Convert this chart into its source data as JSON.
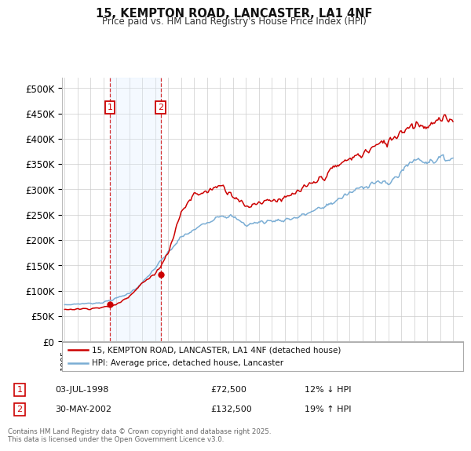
{
  "title": "15, KEMPTON ROAD, LANCASTER, LA1 4NF",
  "subtitle": "Price paid vs. HM Land Registry's House Price Index (HPI)",
  "legend_line1": "15, KEMPTON ROAD, LANCASTER, LA1 4NF (detached house)",
  "legend_line2": "HPI: Average price, detached house, Lancaster",
  "footnote": "Contains HM Land Registry data © Crown copyright and database right 2025.\nThis data is licensed under the Open Government Licence v3.0.",
  "sale1_label": "1",
  "sale1_date": "03-JUL-1998",
  "sale1_price": "£72,500",
  "sale1_hpi": "12% ↓ HPI",
  "sale2_label": "2",
  "sale2_date": "30-MAY-2002",
  "sale2_price": "£132,500",
  "sale2_hpi": "19% ↑ HPI",
  "price_color": "#cc0000",
  "hpi_color": "#7aadd4",
  "shade_color": "#ddeeff",
  "background_color": "#ffffff",
  "grid_color": "#cccccc",
  "ylabel_values": [
    "£0",
    "£50K",
    "£100K",
    "£150K",
    "£200K",
    "£250K",
    "£300K",
    "£350K",
    "£400K",
    "£450K",
    "£500K"
  ],
  "ylim": [
    0,
    520000
  ],
  "xlim_start": 1994.8,
  "xlim_end": 2025.8,
  "sale1_x": 1998.5,
  "sale1_y": 72500,
  "sale2_x": 2002.42,
  "sale2_y": 132500,
  "shade_x1": 1998.5,
  "shade_x2": 2002.42,
  "hpi_knots_x": [
    1995,
    1996,
    1997,
    1998,
    1999,
    2000,
    2001,
    2002,
    2003,
    2004,
    2005,
    2006,
    2007,
    2008,
    2009,
    2010,
    2011,
    2012,
    2013,
    2014,
    2015,
    2016,
    2017,
    2018,
    2019,
    2020,
    2021,
    2022,
    2023,
    2024,
    2025
  ],
  "hpi_knots_y": [
    72000,
    74000,
    75000,
    77000,
    85000,
    95000,
    115000,
    145000,
    175000,
    205000,
    220000,
    235000,
    250000,
    245000,
    230000,
    235000,
    238000,
    240000,
    245000,
    255000,
    265000,
    278000,
    292000,
    305000,
    315000,
    310000,
    335000,
    360000,
    355000,
    360000,
    362000
  ],
  "price_knots_x": [
    1995,
    1996,
    1997,
    1998,
    1999,
    2000,
    2001,
    2002,
    2003,
    2004,
    2005,
    2006,
    2007,
    2008,
    2009,
    2010,
    2011,
    2012,
    2013,
    2014,
    2015,
    2016,
    2017,
    2018,
    2019,
    2020,
    2021,
    2022,
    2023,
    2024,
    2025
  ],
  "price_knots_y": [
    63000,
    64000,
    65000,
    67000,
    72500,
    90000,
    115000,
    132500,
    175000,
    255000,
    290000,
    295000,
    310000,
    290000,
    265000,
    275000,
    280000,
    280000,
    295000,
    308000,
    325000,
    345000,
    360000,
    370000,
    385000,
    395000,
    415000,
    430000,
    425000,
    435000,
    440000
  ]
}
